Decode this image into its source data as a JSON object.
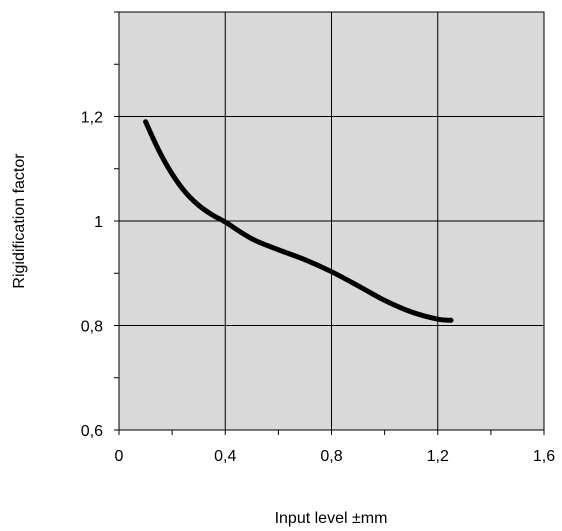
{
  "chart_data": {
    "type": "line",
    "title": "",
    "xlabel": "Input level ±mm",
    "ylabel": "Rigidification factor",
    "xlim": [
      0,
      1.6
    ],
    "ylim": [
      0.6,
      1.4
    ],
    "x_ticks": [
      "0",
      "0,4",
      "0,8",
      "1,2",
      "1,6"
    ],
    "x_tick_values": [
      0,
      0.4,
      0.8,
      1.2,
      1.6
    ],
    "y_ticks": [
      "0,6",
      "0,8",
      "1",
      "1,2"
    ],
    "y_tick_values": [
      0.6,
      0.8,
      1.0,
      1.2
    ],
    "grid": true,
    "plot_background": "#d9d9d9",
    "line_color": "#000000",
    "series": [
      {
        "x": [
          0.1,
          0.15,
          0.2,
          0.25,
          0.3,
          0.35,
          0.4,
          0.5,
          0.6,
          0.7,
          0.8,
          0.9,
          1.0,
          1.1,
          1.2,
          1.25
        ],
        "values": [
          1.19,
          1.135,
          1.09,
          1.055,
          1.03,
          1.012,
          0.998,
          0.966,
          0.945,
          0.926,
          0.903,
          0.876,
          0.848,
          0.826,
          0.812,
          0.81
        ]
      }
    ]
  }
}
